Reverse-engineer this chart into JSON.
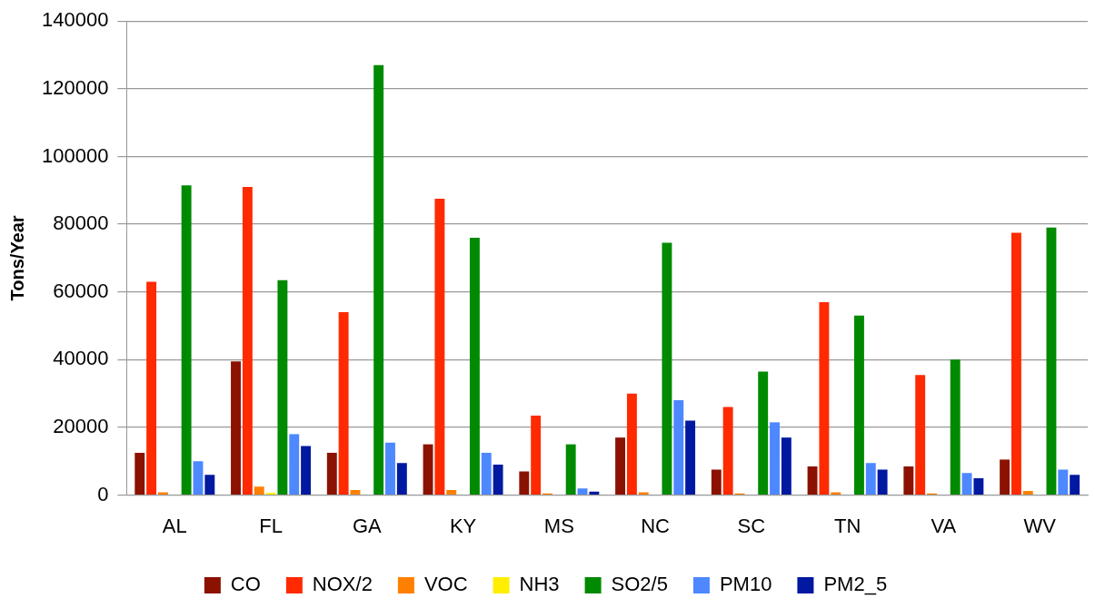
{
  "chart_data": {
    "type": "bar",
    "ylabel": "Tons/Year",
    "categories": [
      "AL",
      "FL",
      "GA",
      "KY",
      "MS",
      "NC",
      "SC",
      "TN",
      "VA",
      "WV"
    ],
    "series": [
      {
        "name": "CO",
        "color": "#8b1200",
        "values": [
          12500,
          39500,
          12500,
          15000,
          7000,
          17000,
          7500,
          8500,
          8500,
          10500
        ]
      },
      {
        "name": "NOX/2",
        "color": "#ff2a00",
        "values": [
          63000,
          91000,
          54000,
          87500,
          23500,
          30000,
          26000,
          57000,
          35500,
          77500
        ]
      },
      {
        "name": "VOC",
        "color": "#ff8000",
        "values": [
          800,
          2500,
          1500,
          1500,
          500,
          800,
          500,
          800,
          500,
          1200
        ]
      },
      {
        "name": "NH3",
        "color": "#ffee00",
        "values": [
          null,
          700,
          null,
          null,
          null,
          null,
          null,
          null,
          null,
          null
        ]
      },
      {
        "name": "SO2/5",
        "color": "#008a00",
        "values": [
          91500,
          63500,
          127000,
          76000,
          15000,
          74500,
          36500,
          53000,
          40000,
          79000
        ]
      },
      {
        "name": "PM10",
        "color": "#4d88ff",
        "values": [
          10000,
          18000,
          15500,
          12500,
          2000,
          28000,
          21500,
          9500,
          6500,
          7500
        ]
      },
      {
        "name": "PM2_5",
        "color": "#0019a0",
        "values": [
          6000,
          14500,
          9500,
          9000,
          1000,
          22000,
          17000,
          7500,
          5000,
          6000
        ]
      }
    ],
    "ylim": [
      0,
      140000
    ],
    "yticks": [
      0,
      20000,
      40000,
      60000,
      80000,
      100000,
      120000,
      140000
    ],
    "grid": "y",
    "legend": "bottom"
  }
}
